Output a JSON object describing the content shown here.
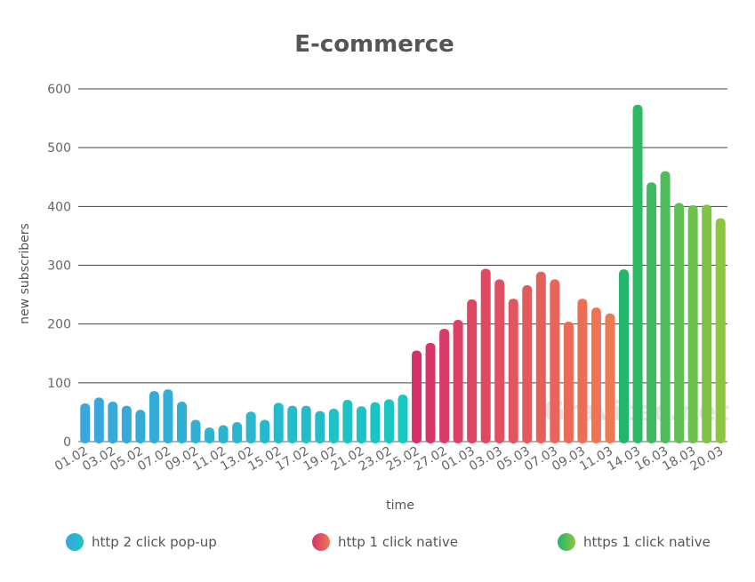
{
  "chart_data": {
    "type": "bar",
    "title": "E-commerce",
    "xlabel": "time",
    "ylabel": "new subscribers",
    "ylim": [
      0,
      600
    ],
    "y_ticks": [
      0,
      100,
      200,
      300,
      400,
      500,
      600
    ],
    "grid": true,
    "legend_position": "bottom",
    "watermark": "Gravitec.net",
    "x_tick_labels": [
      "01.02",
      "03.02",
      "05.02",
      "07.02",
      "09.02",
      "11.02",
      "13.02",
      "15.02",
      "17.02",
      "19.02",
      "21.02",
      "23.02",
      "25.02",
      "27.02",
      "01.03",
      "03.03",
      "05.03",
      "07.03",
      "09.03",
      "11.03",
      "14.03",
      "16.03",
      "18.03",
      "20.03"
    ],
    "series": [
      {
        "name": "http 2 click pop-up",
        "color": "#3aa6dd",
        "color_end": "#17c7c2",
        "values": [
          65,
          75,
          68,
          61,
          54,
          86,
          89,
          68,
          37,
          24,
          28,
          33,
          51,
          37,
          66,
          61,
          61,
          52,
          56,
          71,
          60,
          67,
          72,
          80
        ]
      },
      {
        "name": "http 1 click native",
        "color": "#d6306a",
        "color_end": "#ef7a52",
        "values": [
          155,
          168,
          192,
          207,
          242,
          294,
          276,
          243,
          266,
          289,
          276,
          204,
          243,
          228,
          218
        ]
      },
      {
        "name": "https 1 click native",
        "color": "#20b66c",
        "color_end": "#8cc63f",
        "values": [
          293,
          573,
          441,
          460,
          406,
          402,
          403,
          380
        ]
      }
    ]
  }
}
